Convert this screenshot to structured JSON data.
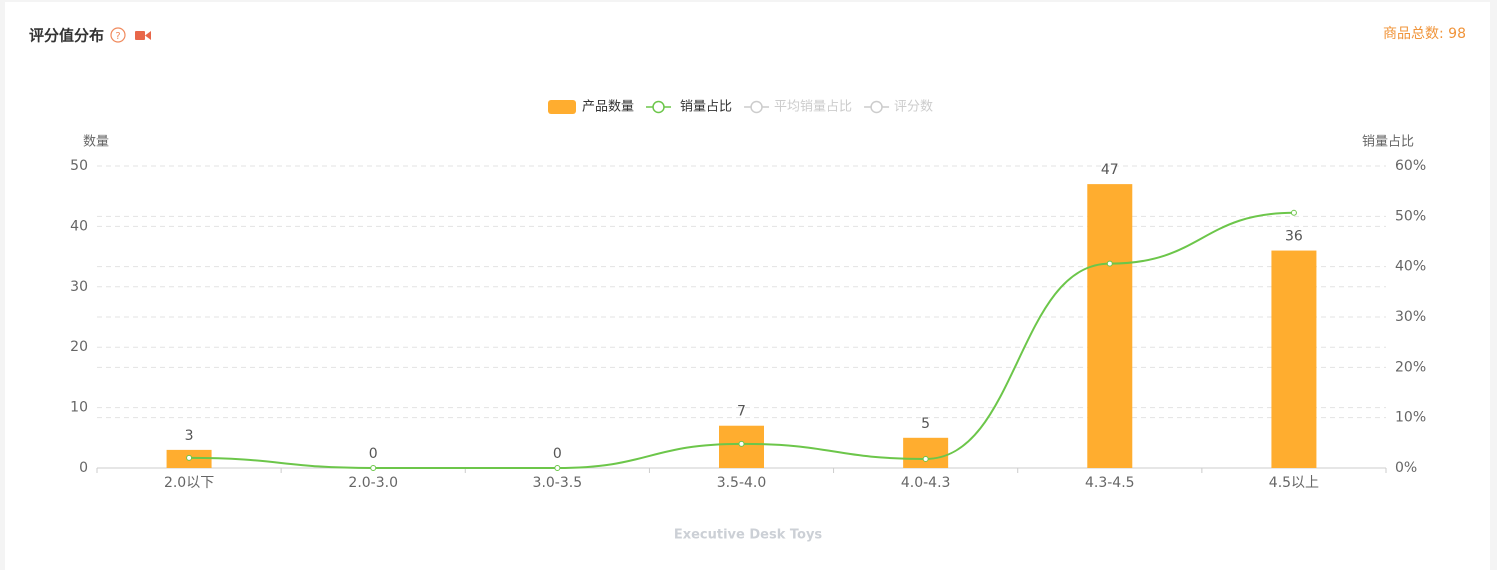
{
  "chart_data": {
    "type": "bar_line",
    "title": "评分值分布",
    "total_label": "商品总数: 98",
    "y_label": "数量",
    "y2_label": "销量占比",
    "x_label": "Executive Desk Toys",
    "categories": [
      "2.0以下",
      "2.0-3.0",
      "3.0-3.5",
      "3.5-4.0",
      "4.0-4.3",
      "4.3-4.5",
      "4.5以上"
    ],
    "series": [
      {
        "name": "产品数量",
        "type": "bar",
        "color": "#ffad2f",
        "values": [
          3,
          0,
          0,
          7,
          5,
          47,
          36
        ]
      },
      {
        "name": "销量占比",
        "type": "line",
        "axis": "y2",
        "color": "#6cc64a",
        "values": [
          2.0,
          0,
          0,
          4.8,
          1.8,
          40.6,
          50.7
        ]
      }
    ],
    "hidden_series": [
      "平均销量占比",
      "评分数"
    ],
    "ylim": [
      0,
      50
    ],
    "yticks": [
      0,
      10,
      20,
      30,
      40,
      50
    ],
    "y2lim": [
      0,
      60
    ],
    "y2ticks": [
      {
        "value": 0,
        "label": "0%"
      },
      {
        "value": 10,
        "label": "10%"
      },
      {
        "value": 20,
        "label": "20%"
      },
      {
        "value": 30,
        "label": "30%"
      },
      {
        "value": 40,
        "label": "40%"
      },
      {
        "value": 50,
        "label": "50%"
      },
      {
        "value": 60,
        "label": "60%"
      }
    ],
    "grid": true
  }
}
